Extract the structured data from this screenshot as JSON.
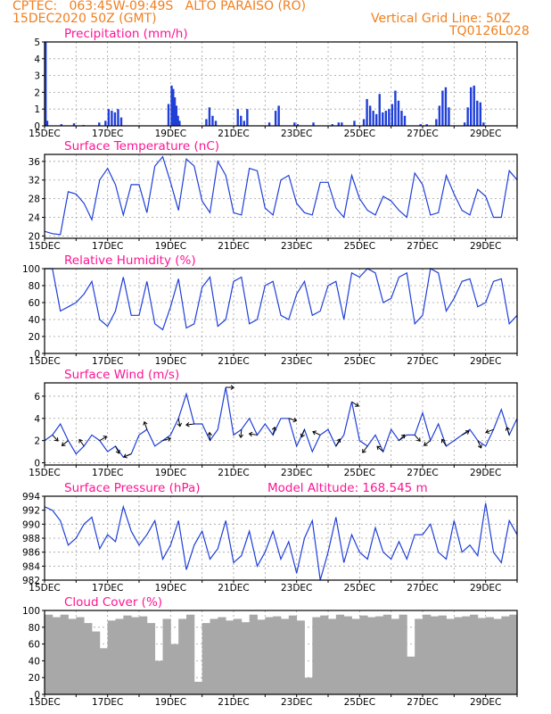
{
  "header": {
    "line1": "CPTEC:   063:45W-09:49S   ALTO PARAISO (RO)",
    "line2": "15DEC2020 50Z (GMT)",
    "right1": "Vertical Grid Line: 50Z",
    "right2": "TQ0126L028"
  },
  "colors": {
    "header": "#f08020",
    "title": "#ff1493",
    "series": "#1f3fd8",
    "wind_arrow": "#000000",
    "cloud": "#a8a8a8",
    "grid": "#a0a0a0"
  },
  "x_ticks": [
    "15DEC",
    "17DEC",
    "19DEC",
    "21DEC",
    "23DEC",
    "25DEC",
    "27DEC",
    "29DEC"
  ],
  "panels": [
    {
      "id": "precip",
      "title": "Precipitation (mm/h)",
      "yticks": [
        "0",
        "1",
        "2",
        "3",
        "4",
        "5"
      ]
    },
    {
      "id": "temp",
      "title": "Surface Temperature (nC)",
      "yticks": [
        "20",
        "24",
        "28",
        "32",
        "36"
      ]
    },
    {
      "id": "rh",
      "title": "Relative Humidity (%)",
      "yticks": [
        "0",
        "20",
        "40",
        "60",
        "80",
        "100"
      ]
    },
    {
      "id": "wind",
      "title": "Surface Wind (m/s)",
      "yticks": [
        "0",
        "2",
        "4",
        "6"
      ]
    },
    {
      "id": "press",
      "title": "Surface Pressure (hPa)",
      "extra": "Model Altitude: 168.545 m",
      "yticks": [
        "982",
        "984",
        "986",
        "988",
        "990",
        "992",
        "994"
      ]
    },
    {
      "id": "cloud",
      "title": "Cloud Cover (%)",
      "yticks": [
        "0",
        "20",
        "40",
        "60",
        "80",
        "100"
      ]
    }
  ],
  "chart_data": [
    {
      "type": "bar",
      "title": "Precipitation (mm/h)",
      "xlim": [
        0,
        15
      ],
      "ylim": [
        0,
        5
      ],
      "x_tick_labels": [
        "15DEC",
        "17DEC",
        "19DEC",
        "21DEC",
        "23DEC",
        "25DEC",
        "27DEC",
        "29DEC"
      ],
      "x": [
        0.0,
        0.05,
        0.5,
        0.9,
        1.2,
        1.7,
        1.9,
        2.0,
        2.1,
        2.2,
        2.3,
        2.4,
        3.9,
        4.0,
        4.05,
        4.1,
        4.15,
        4.2,
        4.25,
        5.1,
        5.2,
        5.3,
        5.4,
        6.1,
        6.2,
        6.3,
        6.4,
        7.1,
        7.3,
        7.4,
        7.9,
        8.0,
        8.5,
        9.1,
        9.3,
        9.4,
        9.8,
        10.1,
        10.2,
        10.3,
        10.4,
        10.5,
        10.6,
        10.7,
        10.8,
        10.9,
        11.0,
        11.1,
        11.2,
        11.3,
        11.4,
        11.9,
        12.1,
        12.4,
        12.5,
        12.6,
        12.7,
        12.8,
        13.3,
        13.4,
        13.5,
        13.6,
        13.7,
        13.8,
        13.9
      ],
      "y": [
        5.0,
        0.3,
        0.1,
        0.15,
        0.05,
        0.2,
        0.3,
        1.0,
        0.9,
        0.8,
        1.0,
        0.5,
        1.3,
        2.4,
        2.2,
        1.7,
        1.2,
        0.6,
        0.3,
        0.4,
        1.1,
        0.6,
        0.3,
        1.0,
        0.6,
        0.3,
        1.0,
        0.2,
        0.9,
        1.2,
        0.2,
        0.1,
        0.2,
        0.1,
        0.2,
        0.2,
        0.3,
        0.4,
        1.6,
        1.2,
        0.9,
        0.7,
        1.9,
        0.8,
        0.9,
        1.0,
        1.3,
        2.1,
        1.5,
        0.9,
        0.6,
        0.1,
        0.1,
        0.4,
        1.2,
        2.1,
        2.3,
        1.1,
        0.2,
        1.1,
        2.3,
        2.4,
        1.5,
        1.4,
        0.2
      ]
    },
    {
      "type": "line",
      "title": "Surface Temperature (nC)",
      "xlim": [
        0,
        15
      ],
      "ylim": [
        20,
        37.5
      ],
      "x_tick_labels": [
        "15DEC",
        "17DEC",
        "19DEC",
        "21DEC",
        "23DEC",
        "25DEC",
        "27DEC",
        "29DEC"
      ],
      "x": [
        0.0,
        0.25,
        0.5,
        0.75,
        1.0,
        1.25,
        1.5,
        1.75,
        2.0,
        2.25,
        2.5,
        2.75,
        3.0,
        3.25,
        3.5,
        3.75,
        4.0,
        4.25,
        4.5,
        4.75,
        5.0,
        5.25,
        5.5,
        5.75,
        6.0,
        6.25,
        6.5,
        6.75,
        7.0,
        7.25,
        7.5,
        7.75,
        8.0,
        8.25,
        8.5,
        8.75,
        9.0,
        9.25,
        9.5,
        9.75,
        10.0,
        10.25,
        10.5,
        10.75,
        11.0,
        11.25,
        11.5,
        11.75,
        12.0,
        12.25,
        12.5,
        12.75,
        13.0,
        13.25,
        13.5,
        13.75,
        14.0,
        14.25,
        14.5,
        14.75,
        15.0
      ],
      "y": [
        21.0,
        20.5,
        20.3,
        29.5,
        29.0,
        27.0,
        23.5,
        32.0,
        34.5,
        31.0,
        24.5,
        31.0,
        31.0,
        25.0,
        35.0,
        37.0,
        31.5,
        25.5,
        36.5,
        35.0,
        27.5,
        25.0,
        36.0,
        33.0,
        25.0,
        24.5,
        34.5,
        34.0,
        26.0,
        24.5,
        32.0,
        33.0,
        27.0,
        25.0,
        24.5,
        31.5,
        31.5,
        26.0,
        24.0,
        33.0,
        28.0,
        25.5,
        24.5,
        28.5,
        27.5,
        25.5,
        24.0,
        33.5,
        31.0,
        24.5,
        25.0,
        33.0,
        29.0,
        25.5,
        24.5,
        30.0,
        28.5,
        24.0,
        24.0,
        34.0,
        32.0
      ]
    },
    {
      "type": "line",
      "title": "Relative Humidity (%)",
      "xlim": [
        0,
        15
      ],
      "ylim": [
        0,
        100
      ],
      "x_tick_labels": [
        "15DEC",
        "17DEC",
        "19DEC",
        "21DEC",
        "23DEC",
        "25DEC",
        "27DEC",
        "29DEC"
      ],
      "x": [
        0.0,
        0.25,
        0.5,
        0.75,
        1.0,
        1.25,
        1.5,
        1.75,
        2.0,
        2.25,
        2.5,
        2.75,
        3.0,
        3.25,
        3.5,
        3.75,
        4.0,
        4.25,
        4.5,
        4.75,
        5.0,
        5.25,
        5.5,
        5.75,
        6.0,
        6.25,
        6.5,
        6.75,
        7.0,
        7.25,
        7.5,
        7.75,
        8.0,
        8.25,
        8.5,
        8.75,
        9.0,
        9.25,
        9.5,
        9.75,
        10.0,
        10.25,
        10.5,
        10.75,
        11.0,
        11.25,
        11.5,
        11.75,
        12.0,
        12.25,
        12.5,
        12.75,
        13.0,
        13.25,
        13.5,
        13.75,
        14.0,
        14.25,
        14.5,
        14.75,
        15.0
      ],
      "y": [
        100,
        100,
        50,
        55,
        60,
        70,
        85,
        40,
        32,
        50,
        90,
        45,
        45,
        85,
        35,
        28,
        55,
        88,
        30,
        35,
        78,
        90,
        32,
        40,
        85,
        90,
        35,
        40,
        80,
        85,
        45,
        40,
        70,
        85,
        45,
        50,
        80,
        85,
        40,
        95,
        90,
        100,
        95,
        60,
        65,
        90,
        95,
        35,
        45,
        100,
        95,
        50,
        65,
        85,
        88,
        55,
        60,
        85,
        88,
        35,
        45
      ]
    },
    {
      "type": "line",
      "title": "Surface Wind (m/s)",
      "xlim": [
        0,
        15
      ],
      "ylim": [
        0,
        7
      ],
      "x_tick_labels": [
        "15DEC",
        "17DEC",
        "19DEC",
        "21DEC",
        "23DEC",
        "25DEC",
        "27DEC",
        "29DEC"
      ],
      "x": [
        0.0,
        0.25,
        0.5,
        0.75,
        1.0,
        1.25,
        1.5,
        1.75,
        2.0,
        2.25,
        2.5,
        2.75,
        3.0,
        3.25,
        3.5,
        3.75,
        4.0,
        4.25,
        4.5,
        4.75,
        5.0,
        5.25,
        5.5,
        5.75,
        6.0,
        6.25,
        6.5,
        6.75,
        7.0,
        7.25,
        7.5,
        7.75,
        8.0,
        8.25,
        8.5,
        8.75,
        9.0,
        9.25,
        9.5,
        9.75,
        10.0,
        10.25,
        10.5,
        10.75,
        11.0,
        11.25,
        11.5,
        11.75,
        12.0,
        12.25,
        12.5,
        12.75,
        13.0,
        13.25,
        13.5,
        13.75,
        14.0,
        14.25,
        14.5,
        14.75,
        15.0
      ],
      "y": [
        2.0,
        2.5,
        3.5,
        2.0,
        0.8,
        1.5,
        2.5,
        2.0,
        1.0,
        1.5,
        0.5,
        0.8,
        2.5,
        3.0,
        1.5,
        2.0,
        2.5,
        4.0,
        6.2,
        3.5,
        3.5,
        2.0,
        3.0,
        6.8,
        2.5,
        3.0,
        4.0,
        2.5,
        3.5,
        2.5,
        4.0,
        4.0,
        1.5,
        3.0,
        1.0,
        2.5,
        3.0,
        1.5,
        2.5,
        5.5,
        2.0,
        1.5,
        2.5,
        1.0,
        3.0,
        2.0,
        2.5,
        2.5,
        4.5,
        2.0,
        3.5,
        1.5,
        2.0,
        2.5,
        3.0,
        2.0,
        1.5,
        3.0,
        4.8,
        2.5,
        4.0
      ]
    },
    {
      "type": "line",
      "title": "Surface Pressure (hPa)",
      "xlim": [
        0,
        15
      ],
      "ylim": [
        982,
        994
      ],
      "x_tick_labels": [
        "15DEC",
        "17DEC",
        "19DEC",
        "21DEC",
        "23DEC",
        "25DEC",
        "27DEC",
        "29DEC"
      ],
      "x": [
        0.0,
        0.25,
        0.5,
        0.75,
        1.0,
        1.25,
        1.5,
        1.75,
        2.0,
        2.25,
        2.5,
        2.75,
        3.0,
        3.25,
        3.5,
        3.75,
        4.0,
        4.25,
        4.5,
        4.75,
        5.0,
        5.25,
        5.5,
        5.75,
        6.0,
        6.25,
        6.5,
        6.75,
        7.0,
        7.25,
        7.5,
        7.75,
        8.0,
        8.25,
        8.5,
        8.75,
        9.0,
        9.25,
        9.5,
        9.75,
        10.0,
        10.25,
        10.5,
        10.75,
        11.0,
        11.25,
        11.5,
        11.75,
        12.0,
        12.25,
        12.5,
        12.75,
        13.0,
        13.25,
        13.5,
        13.75,
        14.0,
        14.25,
        14.5,
        14.75,
        15.0
      ],
      "y": [
        992.5,
        992.0,
        990.5,
        987.0,
        988.0,
        990.0,
        991.0,
        986.5,
        988.5,
        987.5,
        992.5,
        989.0,
        987.0,
        988.5,
        990.5,
        985.0,
        987.0,
        990.5,
        983.5,
        987.0,
        989.0,
        985.0,
        986.5,
        990.5,
        984.5,
        985.5,
        989.0,
        984.0,
        986.0,
        989.0,
        985.0,
        987.5,
        983.0,
        988.0,
        990.5,
        982.0,
        986.0,
        991.0,
        984.5,
        988.5,
        986.0,
        985.0,
        989.5,
        986.0,
        985.0,
        987.5,
        985.0,
        988.5,
        988.5,
        990.0,
        986.0,
        985.0,
        990.5,
        986.0,
        987.0,
        985.5,
        993.0,
        986.0,
        984.5,
        990.5,
        988.5
      ]
    },
    {
      "type": "bar",
      "title": "Cloud Cover (%)",
      "xlim": [
        0,
        15
      ],
      "ylim": [
        0,
        100
      ],
      "x_tick_labels": [
        "15DEC",
        "17DEC",
        "19DEC",
        "21DEC",
        "23DEC",
        "25DEC",
        "27DEC",
        "29DEC"
      ],
      "x": [
        0.0,
        0.25,
        0.5,
        0.75,
        1.0,
        1.25,
        1.5,
        1.75,
        2.0,
        2.25,
        2.5,
        2.75,
        3.0,
        3.25,
        3.5,
        3.75,
        4.0,
        4.25,
        4.5,
        4.75,
        5.0,
        5.25,
        5.5,
        5.75,
        6.0,
        6.25,
        6.5,
        6.75,
        7.0,
        7.25,
        7.5,
        7.75,
        8.0,
        8.25,
        8.5,
        8.75,
        9.0,
        9.25,
        9.5,
        9.75,
        10.0,
        10.25,
        10.5,
        10.75,
        11.0,
        11.25,
        11.5,
        11.75,
        12.0,
        12.25,
        12.5,
        12.75,
        13.0,
        13.25,
        13.5,
        13.75,
        14.0,
        14.25,
        14.5,
        14.75
      ],
      "y": [
        95,
        92,
        95,
        90,
        92,
        85,
        75,
        55,
        88,
        90,
        94,
        92,
        93,
        85,
        40,
        90,
        60,
        90,
        95,
        15,
        85,
        90,
        92,
        88,
        90,
        86,
        95,
        89,
        92,
        93,
        90,
        94,
        88,
        20,
        92,
        94,
        90,
        95,
        93,
        90,
        94,
        92,
        93,
        95,
        90,
        95,
        45,
        90,
        95,
        93,
        94,
        90,
        92,
        93,
        95,
        91,
        92,
        90,
        93,
        95
      ]
    }
  ]
}
